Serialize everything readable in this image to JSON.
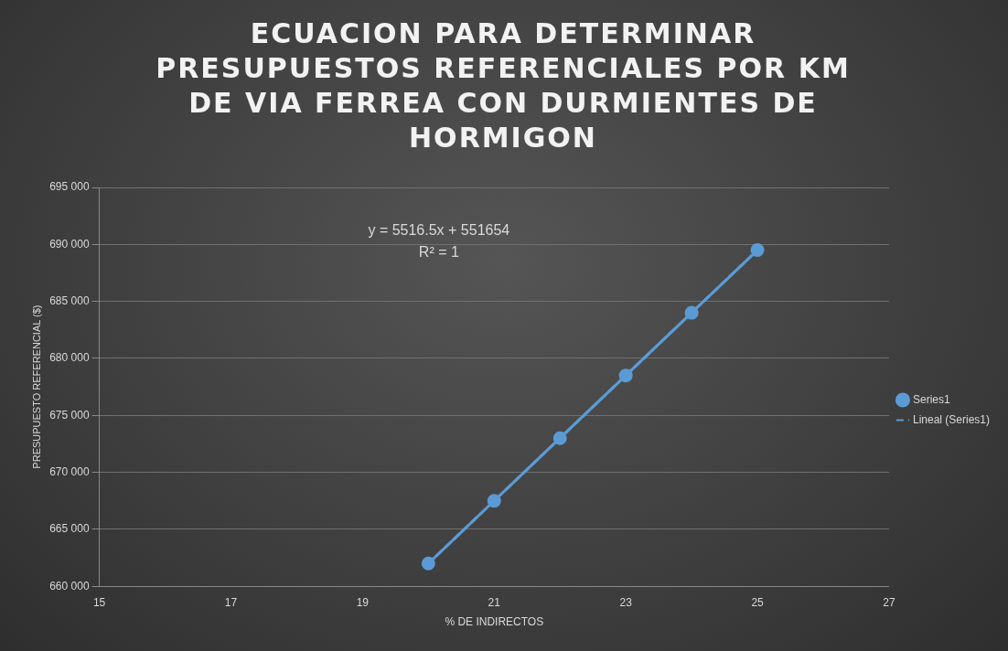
{
  "chart_data": {
    "type": "line",
    "title": "ECUACION PARA DETERMINAR PRESUPUESTOS REFERENCIALES POR KM DE VIA FERREA CON DURMIENTES DE HORMIGON",
    "xlabel": "% DE INDIRECTOS",
    "ylabel": "PRESUPUESTO REFERENCIAL ($)",
    "series": [
      {
        "name": "Series1",
        "color": "#5b9bd5",
        "marker": "circle",
        "line_style": "solid",
        "x": [
          20,
          21,
          22,
          23,
          24,
          25
        ],
        "values": [
          662000,
          667500,
          673000,
          678500,
          684000,
          689500
        ]
      },
      {
        "name": "Lineal (Series1)",
        "color": "#5b9bd5",
        "marker": "none",
        "line_style": "dashed",
        "x": [
          20,
          25
        ],
        "values": [
          662000,
          689500
        ]
      }
    ],
    "annotations": [
      "y = 5516.5x + 551654",
      "R² = 1"
    ],
    "xlim": [
      15,
      27
    ],
    "xticks": [
      15,
      17,
      19,
      21,
      23,
      25,
      27
    ],
    "ylim": [
      660000,
      695000
    ],
    "yticks": [
      {
        "value": 660000,
        "label": "660 000"
      },
      {
        "value": 665000,
        "label": "665 000"
      },
      {
        "value": 670000,
        "label": "670 000"
      },
      {
        "value": 675000,
        "label": "675 000"
      },
      {
        "value": 680000,
        "label": "680 000"
      },
      {
        "value": 685000,
        "label": "685 000"
      },
      {
        "value": 690000,
        "label": "690 000"
      },
      {
        "value": 695000,
        "label": "695 000"
      }
    ],
    "grid": "y",
    "legend": "right"
  }
}
